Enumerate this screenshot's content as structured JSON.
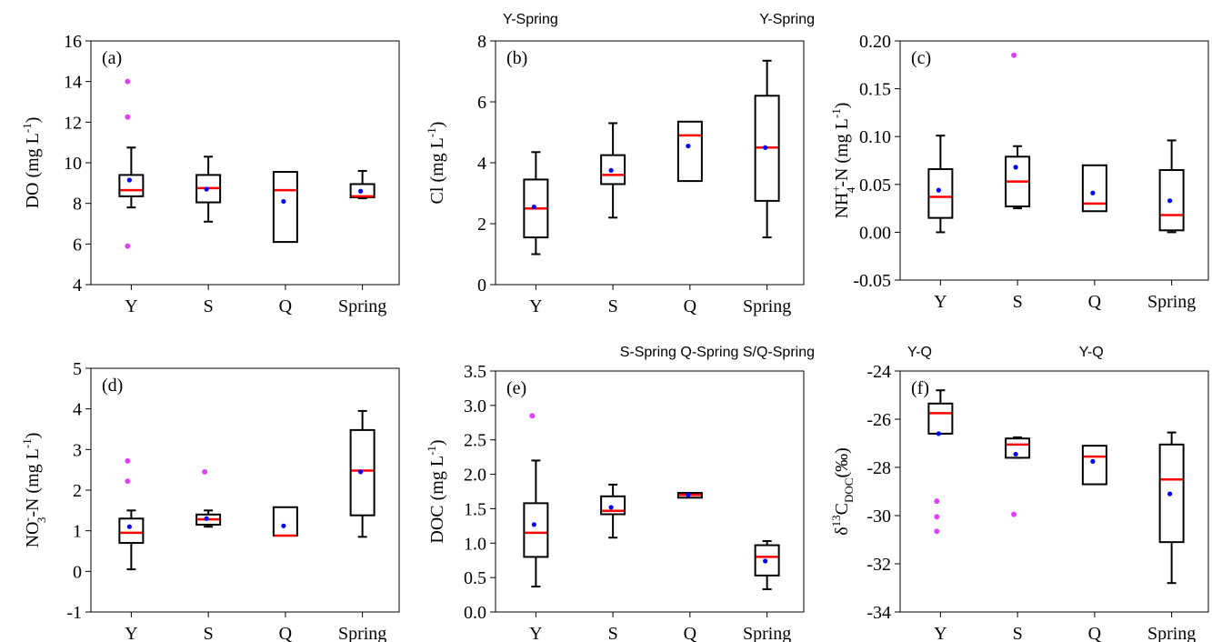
{
  "colors": {
    "median": "#ff0000",
    "mean": "#0000ff",
    "outlier": "#e040fb",
    "box": "#000000"
  },
  "chart_data": [
    {
      "type": "box",
      "panel": "(a)",
      "ylabel_html": "DO (mg L<tspan dy='-8' font-size='13'>-1</tspan><tspan dy='8'>)</tspan>",
      "ylim": [
        4,
        16
      ],
      "yticks": [
        4,
        6,
        8,
        10,
        12,
        14,
        16
      ],
      "ytick_labels": [
        "4",
        "6",
        "8",
        "10",
        "12",
        "14",
        "16"
      ],
      "categories": [
        "Y",
        "S",
        "Q",
        "Spring"
      ],
      "significance": [],
      "boxes": [
        {
          "whisker_low": 7.8,
          "q1": 8.35,
          "median": 8.65,
          "q3": 9.4,
          "whisker_high": 10.75,
          "mean": 9.15,
          "outliers": [
            14.0,
            12.25,
            5.9
          ]
        },
        {
          "whisker_low": 7.1,
          "q1": 8.05,
          "median": 8.75,
          "q3": 9.4,
          "whisker_high": 10.3,
          "mean": 8.7,
          "outliers": []
        },
        {
          "whisker_low": null,
          "q1": 6.1,
          "median": 8.65,
          "q3": 9.55,
          "whisker_high": null,
          "mean": 8.1,
          "outliers": []
        },
        {
          "whisker_low": 8.25,
          "q1": 8.3,
          "median": 8.35,
          "q3": 8.95,
          "whisker_high": 9.6,
          "mean": 8.6,
          "outliers": []
        }
      ]
    },
    {
      "type": "box",
      "panel": "(b)",
      "ylabel_html": "Cl (mg L<tspan dy='-8' font-size='13'>-1</tspan><tspan dy='8'>)</tspan>",
      "ylim": [
        0,
        8
      ],
      "yticks": [
        0,
        2,
        4,
        6,
        8
      ],
      "ytick_labels": [
        "0",
        "2",
        "4",
        "6",
        "8"
      ],
      "categories": [
        "Y",
        "S",
        "Q",
        "Spring"
      ],
      "significance": [
        {
          "text": "Y-Spring",
          "anchor": "left"
        },
        {
          "text": "Y-Spring",
          "anchor": "right"
        }
      ],
      "boxes": [
        {
          "whisker_low": 1.0,
          "q1": 1.55,
          "median": 2.5,
          "q3": 3.45,
          "whisker_high": 4.35,
          "mean": 2.55,
          "outliers": []
        },
        {
          "whisker_low": 2.2,
          "q1": 3.3,
          "median": 3.6,
          "q3": 4.25,
          "whisker_high": 5.3,
          "mean": 3.75,
          "outliers": []
        },
        {
          "whisker_low": null,
          "q1": 3.4,
          "median": 4.9,
          "q3": 5.35,
          "whisker_high": null,
          "mean": 4.55,
          "outliers": []
        },
        {
          "whisker_low": 1.55,
          "q1": 2.75,
          "median": 4.5,
          "q3": 6.2,
          "whisker_high": 7.35,
          "mean": 4.5,
          "outliers": []
        }
      ]
    },
    {
      "type": "box",
      "panel": "(c)",
      "ylabel_html": "NH<tspan dy='-8' font-size='13'>+</tspan><tspan dy='16' dx='-8' font-size='13'>4</tspan><tspan dy='-8'>-N (mg L</tspan><tspan dy='-8' font-size='13'>-1</tspan><tspan dy='8'>)</tspan>",
      "ylim": [
        -0.05,
        0.2
      ],
      "yticks": [
        -0.05,
        0.0,
        0.05,
        0.1,
        0.15,
        0.2
      ],
      "ytick_labels": [
        "-0.05",
        "0.00",
        "0.05",
        "0.10",
        "0.15",
        "0.20"
      ],
      "categories": [
        "Y",
        "S",
        "Q",
        "Spring"
      ],
      "significance": [],
      "boxes": [
        {
          "whisker_low": 0.0,
          "q1": 0.015,
          "median": 0.037,
          "q3": 0.066,
          "whisker_high": 0.101,
          "mean": 0.044,
          "outliers": []
        },
        {
          "whisker_low": 0.025,
          "q1": 0.027,
          "median": 0.053,
          "q3": 0.079,
          "whisker_high": 0.09,
          "mean": 0.068,
          "outliers": [
            0.185
          ]
        },
        {
          "whisker_low": null,
          "q1": 0.022,
          "median": 0.03,
          "q3": 0.07,
          "whisker_high": null,
          "mean": 0.041,
          "outliers": []
        },
        {
          "whisker_low": 0.0,
          "q1": 0.002,
          "median": 0.018,
          "q3": 0.065,
          "whisker_high": 0.096,
          "mean": 0.033,
          "outliers": []
        }
      ]
    },
    {
      "type": "box",
      "panel": "(d)",
      "ylabel_html": "NO<tspan dy='-8' font-size='13'>-</tspan><tspan dy='16' dx='-6' font-size='13'>3</tspan><tspan dy='-8'>-N (mg L</tspan><tspan dy='-8' font-size='13'>-1</tspan><tspan dy='8'>)</tspan>",
      "ylim": [
        -1,
        5
      ],
      "yticks": [
        -1,
        0,
        1,
        2,
        3,
        4,
        5
      ],
      "ytick_labels": [
        "-1",
        "0",
        "1",
        "2",
        "3",
        "4",
        "5"
      ],
      "categories": [
        "Y",
        "S",
        "Q",
        "Spring"
      ],
      "significance": [],
      "boxes": [
        {
          "whisker_low": 0.05,
          "q1": 0.7,
          "median": 0.95,
          "q3": 1.3,
          "whisker_high": 1.5,
          "mean": 1.1,
          "outliers": [
            2.72,
            2.22
          ]
        },
        {
          "whisker_low": 1.1,
          "q1": 1.15,
          "median": 1.28,
          "q3": 1.4,
          "whisker_high": 1.5,
          "mean": 1.3,
          "outliers": [
            2.45
          ]
        },
        {
          "whisker_low": null,
          "q1": 0.88,
          "median": 0.88,
          "q3": 1.58,
          "whisker_high": null,
          "mean": 1.12,
          "outliers": []
        },
        {
          "whisker_low": 0.85,
          "q1": 1.38,
          "median": 2.48,
          "q3": 3.48,
          "whisker_high": 3.95,
          "mean": 2.45,
          "outliers": []
        }
      ]
    },
    {
      "type": "box",
      "panel": "(e)",
      "ylabel_html": "DOC (mg L<tspan dy='-8' font-size='13'>-1</tspan><tspan dy='8'>)</tspan>",
      "ylim": [
        0,
        3.5
      ],
      "yticks": [
        0,
        0.5,
        1.0,
        1.5,
        2.0,
        2.5,
        3.0,
        3.5
      ],
      "ytick_labels": [
        "0.0",
        "0.5",
        "1.0",
        "1.5",
        "2.0",
        "2.5",
        "3.0",
        "3.5"
      ],
      "categories": [
        "Y",
        "S",
        "Q",
        "Spring"
      ],
      "significance": [
        {
          "text": "S-Spring Q-Spring S/Q-Spring",
          "anchor": "right"
        }
      ],
      "boxes": [
        {
          "whisker_low": 0.37,
          "q1": 0.8,
          "median": 1.15,
          "q3": 1.58,
          "whisker_high": 2.2,
          "mean": 1.27,
          "outliers": [
            2.85
          ]
        },
        {
          "whisker_low": 1.08,
          "q1": 1.42,
          "median": 1.47,
          "q3": 1.68,
          "whisker_high": 1.85,
          "mean": 1.52,
          "outliers": []
        },
        {
          "whisker_low": null,
          "q1": 1.66,
          "median": 1.7,
          "q3": 1.73,
          "whisker_high": null,
          "mean": 1.7,
          "outliers": []
        },
        {
          "whisker_low": 0.33,
          "q1": 0.53,
          "median": 0.8,
          "q3": 0.97,
          "whisker_high": 1.03,
          "mean": 0.74,
          "outliers": []
        }
      ]
    },
    {
      "type": "box",
      "panel": "(f)",
      "ylabel_html": "δ<tspan dy='-8' font-size='13'>13</tspan><tspan dy='8'>C</tspan><tspan dy='6' font-size='13'>DOC</tspan><tspan dy='-6'>(‰)</tspan>",
      "ylim": [
        -34,
        -24
      ],
      "yticks": [
        -34,
        -32,
        -30,
        -28,
        -26,
        -24
      ],
      "ytick_labels": [
        "-34",
        "-32",
        "-30",
        "-28",
        "-26",
        "-24"
      ],
      "categories": [
        "Y",
        "S",
        "Q",
        "Spring"
      ],
      "significance": [
        {
          "text": "Y-Q",
          "anchor": "left"
        },
        {
          "text": "Y-Q",
          "anchor": "center"
        }
      ],
      "boxes": [
        {
          "whisker_low": -26.6,
          "q1": -26.6,
          "median": -25.75,
          "q3": -25.35,
          "whisker_high": -24.8,
          "mean": -26.6,
          "outliers": [
            -29.4,
            -30.05,
            -30.65
          ]
        },
        {
          "whisker_low": -27.6,
          "q1": -27.6,
          "median": -27.05,
          "q3": -26.8,
          "whisker_high": -26.75,
          "mean": -27.45,
          "outliers": [
            -29.95
          ]
        },
        {
          "whisker_low": null,
          "q1": -28.7,
          "median": -27.55,
          "q3": -27.1,
          "whisker_high": null,
          "mean": -27.75,
          "outliers": []
        },
        {
          "whisker_low": -32.8,
          "q1": -31.1,
          "median": -28.5,
          "q3": -27.05,
          "whisker_high": -26.55,
          "mean": -29.1,
          "outliers": []
        }
      ]
    }
  ]
}
